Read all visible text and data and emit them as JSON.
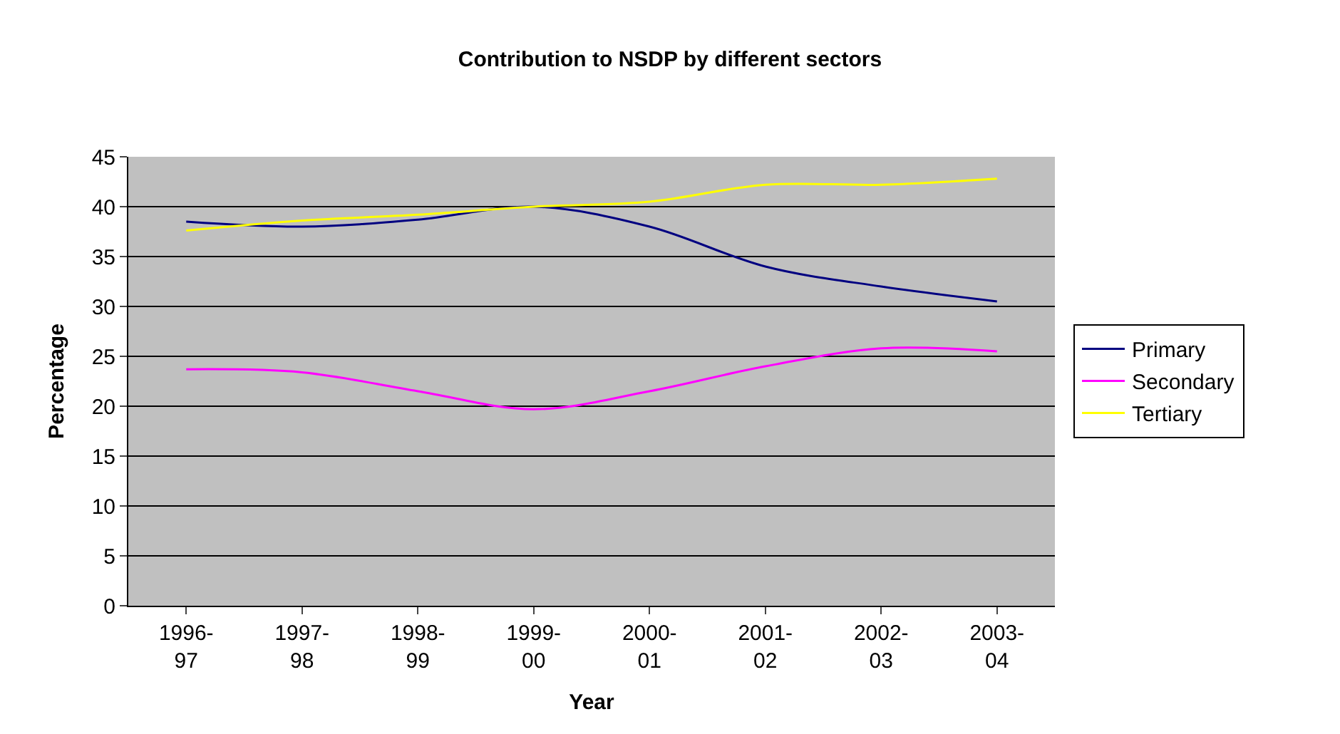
{
  "chart_data": {
    "type": "line",
    "title": "Contribution to NSDP by different sectors",
    "xlabel": "Year",
    "ylabel": "Percentage",
    "categories": [
      "1996-97",
      "1997-98",
      "1998-99",
      "1999-00",
      "2000-01",
      "2001-02",
      "2002-03",
      "2003-04"
    ],
    "series": [
      {
        "name": "Primary",
        "color": "#000080",
        "values": [
          38.5,
          38,
          38.7,
          40,
          38,
          34,
          32,
          30.5
        ]
      },
      {
        "name": "Secondary",
        "color": "#ff00ff",
        "values": [
          23.7,
          23.4,
          21.5,
          19.7,
          21.5,
          24,
          25.8,
          25.5
        ]
      },
      {
        "name": "Tertiary",
        "color": "#ffff00",
        "values": [
          37.6,
          38.6,
          39.2,
          40,
          40.5,
          42.2,
          42.2,
          42.8
        ]
      }
    ],
    "ylim": [
      0,
      45
    ],
    "yticks": [
      0,
      5,
      10,
      15,
      20,
      25,
      30,
      35,
      40,
      45
    ],
    "grid": "y",
    "legend": "right",
    "marker": "none",
    "line_style": "solid"
  }
}
